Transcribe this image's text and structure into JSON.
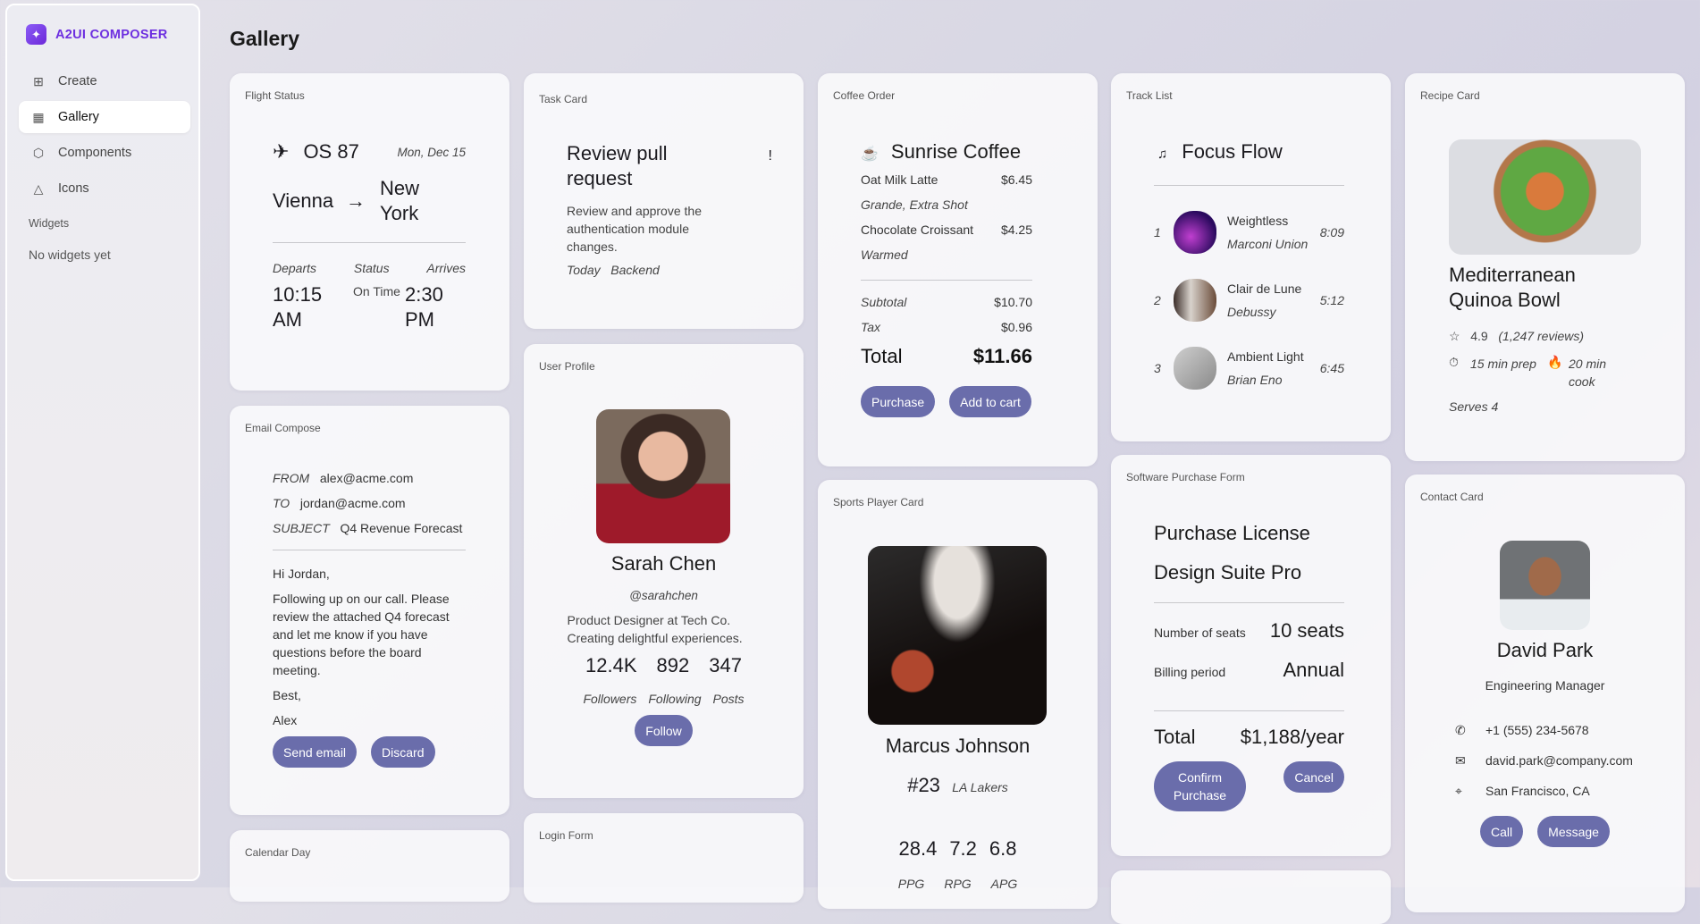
{
  "app": {
    "name": "A2UI COMPOSER",
    "page_title": "Gallery",
    "accent": "#6d2fe0",
    "button_color": "#6a6dab"
  },
  "sidebar": {
    "items": [
      {
        "label": "Create",
        "icon": "plus-square-icon"
      },
      {
        "label": "Gallery",
        "icon": "grid-icon",
        "active": true
      },
      {
        "label": "Components",
        "icon": "cube-icon"
      },
      {
        "label": "Icons",
        "icon": "shapes-icon"
      }
    ],
    "section": "Widgets",
    "empty": "No widgets yet"
  },
  "flight": {
    "label": "Flight Status",
    "number": "OS 87",
    "date": "Mon, Dec 15",
    "from": "Vienna",
    "arrow": "→",
    "to": "New York",
    "departs_label": "Departs",
    "status_label": "Status",
    "arrives_label": "Arrives",
    "departs": "10:15 AM",
    "status": "On Time",
    "arrives": "2:30 PM"
  },
  "email": {
    "label": "Email Compose",
    "from_label": "FROM",
    "from": "alex@acme.com",
    "to_label": "TO",
    "to": "jordan@acme.com",
    "subject_label": "SUBJECT",
    "subject": "Q4 Revenue Forecast",
    "greeting": "Hi Jordan,",
    "body": "Following up on our call. Please review the attached Q4 forecast and let me know if you have questions before the board meeting.",
    "closing": "Best,",
    "signature": "Alex",
    "send": "Send email",
    "discard": "Discard"
  },
  "calendar": {
    "label": "Calendar Day"
  },
  "task": {
    "label": "Task Card",
    "title": "Review pull request",
    "priority": "!",
    "description": "Review and approve the authentication module changes.",
    "due": "Today",
    "tag": "Backend"
  },
  "profile": {
    "label": "User Profile",
    "name": "Sarah Chen",
    "handle": "@sarahchen",
    "bio": "Product Designer at Tech Co. Creating delightful experiences.",
    "stats": [
      {
        "value": "12.4K",
        "label": "Followers"
      },
      {
        "value": "892",
        "label": "Following"
      },
      {
        "value": "347",
        "label": "Posts"
      }
    ],
    "follow": "Follow"
  },
  "login": {
    "label": "Login Form"
  },
  "coffee": {
    "label": "Coffee Order",
    "shop": "Sunrise Coffee",
    "items": [
      {
        "name": "Oat Milk Latte",
        "price": "$6.45",
        "note": "Grande, Extra Shot"
      },
      {
        "name": "Chocolate Croissant",
        "price": "$4.25",
        "note": "Warmed"
      }
    ],
    "subtotal_label": "Subtotal",
    "subtotal": "$10.70",
    "tax_label": "Tax",
    "tax": "$0.96",
    "total_label": "Total",
    "total": "$11.66",
    "purchase": "Purchase",
    "add": "Add to cart"
  },
  "sports": {
    "label": "Sports Player Card",
    "name": "Marcus Johnson",
    "number": "#23",
    "team": "LA Lakers",
    "stats": [
      {
        "value": "28.4",
        "label": "PPG"
      },
      {
        "value": "7.2",
        "label": "RPG"
      },
      {
        "value": "6.8",
        "label": "APG"
      }
    ]
  },
  "tracks": {
    "label": "Track List",
    "playlist": "Focus Flow",
    "items": [
      {
        "n": "1",
        "title": "Weightless",
        "artist": "Marconi Union",
        "time": "8:09"
      },
      {
        "n": "2",
        "title": "Clair de Lune",
        "artist": "Debussy",
        "time": "5:12"
      },
      {
        "n": "3",
        "title": "Ambient Light",
        "artist": "Brian Eno",
        "time": "6:45"
      }
    ]
  },
  "software": {
    "label": "Software Purchase Form",
    "title": "Purchase License",
    "product": "Design Suite Pro",
    "seats_label": "Number of seats",
    "seats": "10 seats",
    "billing_label": "Billing period",
    "billing": "Annual",
    "total_label": "Total",
    "total": "$1,188/year",
    "confirm": "Confirm Purchase",
    "cancel": "Cancel"
  },
  "recipe": {
    "label": "Recipe Card",
    "title": "Mediterranean Quinoa Bowl",
    "rating": "4.9",
    "reviews": "(1,247 reviews)",
    "prep": "15 min prep",
    "cook": "20 min cook",
    "serves": "Serves 4"
  },
  "contact": {
    "label": "Contact Card",
    "name": "David Park",
    "role": "Engineering Manager",
    "phone": "+1 (555) 234-5678",
    "email": "david.park@company.com",
    "location": "San Francisco, CA",
    "call": "Call",
    "message": "Message"
  }
}
